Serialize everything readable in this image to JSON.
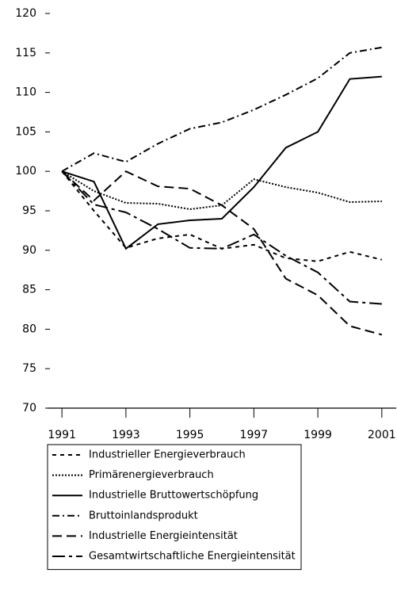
{
  "chart_data": {
    "type": "line",
    "x": [
      1991,
      1992,
      1993,
      1994,
      1995,
      1996,
      1997,
      1998,
      1999,
      2000,
      2001
    ],
    "series": [
      {
        "name": "Industrieller Energieverbrauch",
        "color": "#000000",
        "dash": "5 5",
        "values": [
          100,
          95,
          90.3,
          91.5,
          92,
          90.2,
          90.7,
          89,
          88.6,
          89.8,
          88.8
        ]
      },
      {
        "name": "Primärenergieverbrauch",
        "color": "#000000",
        "dash": "2 2",
        "values": [
          100,
          97.5,
          96,
          95.9,
          95.2,
          95.7,
          99,
          98,
          97.3,
          96.1,
          96.2
        ]
      },
      {
        "name": "Industrielle Bruttowertschöpfung",
        "color": "#000000",
        "dash": "none",
        "values": [
          100,
          98.7,
          90.2,
          93.3,
          93.8,
          94,
          98,
          103,
          105,
          111.7,
          112
        ]
      },
      {
        "name": "Bruttoinlandsprodukt",
        "color": "#000000",
        "dash": "9 4 2 4",
        "values": [
          100,
          102.3,
          101.2,
          103.5,
          105.4,
          106.2,
          107.8,
          109.7,
          111.8,
          115,
          115.7
        ]
      },
      {
        "name": "Industrielle Energieintensität",
        "color": "#000000",
        "dash": "12 6",
        "values": [
          100,
          96.3,
          100,
          98.1,
          97.8,
          95.7,
          92.7,
          86.4,
          84.3,
          80.4,
          79.3
        ]
      },
      {
        "name": "Gesamtwirtschaftliche Energieintensität",
        "color": "#000000",
        "dash": "16 5 4 5",
        "values": [
          100,
          95.8,
          94.8,
          92.7,
          90.3,
          90.2,
          92,
          89.3,
          87.2,
          83.5,
          83.2
        ]
      }
    ],
    "xlim": [
      1990.55,
      2001.45
    ],
    "xticks": [
      1991,
      1993,
      1995,
      1997,
      1999,
      2001
    ],
    "ylim": [
      70,
      120
    ],
    "yticks": [
      70,
      75,
      80,
      85,
      90,
      95,
      100,
      105,
      110,
      115,
      120
    ]
  }
}
